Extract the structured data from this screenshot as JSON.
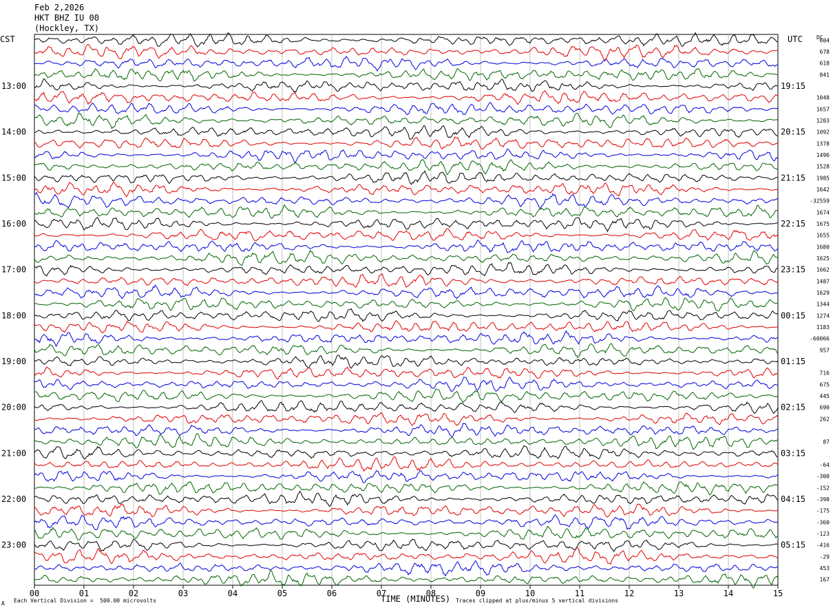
{
  "header": {
    "date": "Feb 2,2026",
    "station": "HKT BHZ IU 00",
    "location": "(Hockley, TX)"
  },
  "left_axis_title": "CST",
  "right_axis_title": "UTC",
  "dc_header": "DC",
  "footer": {
    "scale_note": "Each Vertical Division =  500.00 microvolts",
    "clip_note": "Traces clipped at plus/minus 5 vertical divisions",
    "corner_mark": "A"
  },
  "colors": {
    "trace_cycle": [
      "#000000",
      "#e00000",
      "#0000dd",
      "#006400"
    ],
    "grid": "#999999"
  },
  "chart_data": {
    "type": "line",
    "xlabel": "TIME (MINUTES)",
    "x_ticks": [
      "00",
      "01",
      "02",
      "03",
      "04",
      "05",
      "06",
      "07",
      "08",
      "09",
      "10",
      "11",
      "12",
      "13",
      "14",
      "15"
    ],
    "xlim": [
      0,
      15
    ],
    "trace_count": 48,
    "trace_minutes": 15,
    "left_hour_labels": [
      "13:00",
      "14:00",
      "15:00",
      "16:00",
      "17:00",
      "18:00",
      "19:00",
      "20:00",
      "21:00",
      "22:00",
      "23:00"
    ],
    "right_hour_labels": [
      "19:15",
      "20:15",
      "21:15",
      "22:15",
      "23:15",
      "00:15",
      "01:15",
      "02:15",
      "03:15",
      "04:15",
      "05:15"
    ],
    "dc_offsets": [
      "604",
      "678",
      "618",
      "841",
      "",
      "1048",
      "1657",
      "1203",
      "1092",
      "1378",
      "1496",
      "1528",
      "1985",
      "1642",
      "-32559",
      "1674",
      "1675",
      "1655",
      "1680",
      "1625",
      "1662",
      "1487",
      "1629",
      "1344",
      "1274",
      "1183",
      "-60066",
      "957",
      "",
      "716",
      "675",
      "445",
      "690",
      "262",
      "",
      "87",
      "",
      "-64",
      "-300",
      "-152",
      "-398",
      "-175",
      "-360",
      "-123",
      "-416",
      "-29",
      "453",
      "167"
    ]
  }
}
